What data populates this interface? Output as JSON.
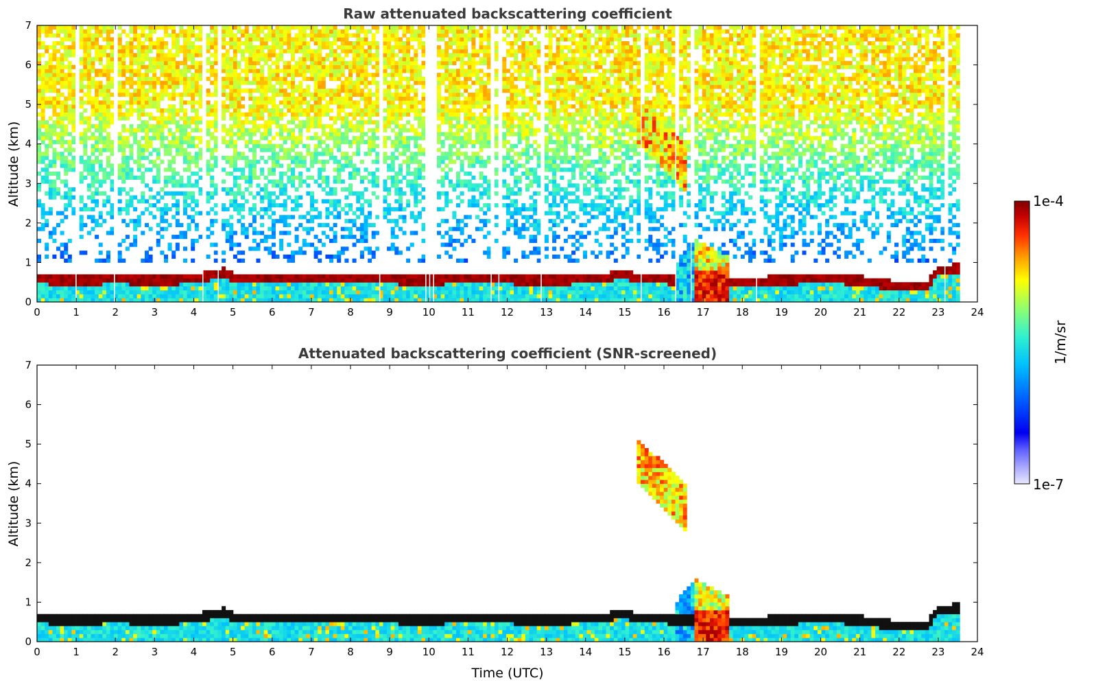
{
  "chart_data": [
    {
      "type": "heatmap",
      "title": "Raw attenuated backscattering coefficient",
      "xlabel": "",
      "ylabel": "Altitude (km)",
      "xlim": [
        0,
        24
      ],
      "ylim": [
        0,
        7
      ],
      "xticks": [
        "0",
        "1",
        "2",
        "3",
        "4",
        "5",
        "6",
        "7",
        "8",
        "9",
        "10",
        "11",
        "12",
        "13",
        "14",
        "15",
        "16",
        "17",
        "18",
        "19",
        "20",
        "21",
        "22",
        "23",
        "24"
      ],
      "yticks": [
        "0",
        "1",
        "2",
        "3",
        "4",
        "5",
        "6",
        "7"
      ],
      "data_end_hour": 23.55,
      "boundary_layer_top_km": [
        {
          "t": 0,
          "z": 0.58
        },
        {
          "t": 1,
          "z": 0.55
        },
        {
          "t": 2,
          "z": 0.58
        },
        {
          "t": 3,
          "z": 0.55
        },
        {
          "t": 4,
          "z": 0.58
        },
        {
          "t": 4.8,
          "z": 0.75
        },
        {
          "t": 5,
          "z": 0.6
        },
        {
          "t": 6,
          "z": 0.58
        },
        {
          "t": 8,
          "z": 0.6
        },
        {
          "t": 10,
          "z": 0.55
        },
        {
          "t": 11,
          "z": 0.6
        },
        {
          "t": 13,
          "z": 0.55
        },
        {
          "t": 14.5,
          "z": 0.6
        },
        {
          "t": 14.9,
          "z": 0.72
        },
        {
          "t": 15.3,
          "z": 0.6
        },
        {
          "t": 18,
          "z": 0.5
        },
        {
          "t": 20,
          "z": 0.6
        },
        {
          "t": 21,
          "z": 0.55
        },
        {
          "t": 22,
          "z": 0.4
        },
        {
          "t": 22.7,
          "z": 0.4
        },
        {
          "t": 23,
          "z": 0.8
        },
        {
          "t": 23.55,
          "z": 0.85
        }
      ],
      "cloud_features": [
        {
          "description": "Elevated cloud layer",
          "t_start": 15.35,
          "t_end": 16.55,
          "z_bottom_km": 2.9,
          "z_top_km": 5.1
        },
        {
          "description": "Precipitation / low cloud",
          "t_start": 16.8,
          "t_end": 17.7,
          "z_bottom_km": 0,
          "z_top_km": 1.6
        }
      ]
    },
    {
      "type": "heatmap",
      "title": "Attenuated backscattering coefficient (SNR-screened)",
      "xlabel": "Time (UTC)",
      "ylabel": "Altitude (km)",
      "xlim": [
        0,
        24
      ],
      "ylim": [
        0,
        7
      ],
      "xticks": [
        "0",
        "1",
        "2",
        "3",
        "4",
        "5",
        "6",
        "7",
        "8",
        "9",
        "10",
        "11",
        "12",
        "13",
        "14",
        "15",
        "16",
        "17",
        "18",
        "19",
        "20",
        "21",
        "22",
        "23",
        "24"
      ],
      "yticks": [
        "0",
        "1",
        "2",
        "3",
        "4",
        "5",
        "6",
        "7"
      ]
    }
  ],
  "colorbar": {
    "label": "1/m/sr",
    "max_label": "1e-4",
    "min_label": "1e-7",
    "scale": "log",
    "colors": [
      "#e8e8ff",
      "#a8a8ff",
      "#7070ff",
      "#0000ff",
      "#0050ff",
      "#00a0ff",
      "#00d8ff",
      "#40ffc0",
      "#a0ff60",
      "#ffff00",
      "#ffb000",
      "#ff5000",
      "#e00000",
      "#800000"
    ]
  }
}
